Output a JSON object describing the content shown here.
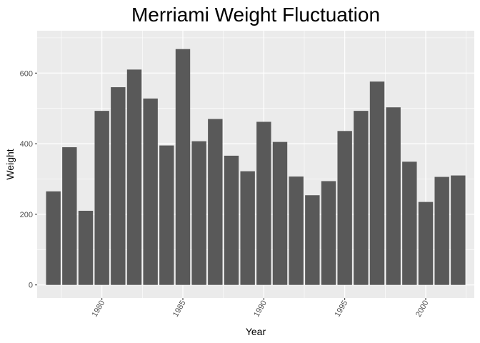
{
  "chart_data": {
    "type": "bar",
    "title": "Merriami Weight Fluctuation",
    "xlabel": "Year",
    "ylabel": "Weight",
    "x": [
      1977,
      1978,
      1979,
      1980,
      1981,
      1982,
      1983,
      1984,
      1985,
      1986,
      1987,
      1988,
      1989,
      1990,
      1991,
      1992,
      1993,
      1994,
      1995,
      1996,
      1997,
      1998,
      1999,
      2000,
      2001,
      2002
    ],
    "values": [
      265,
      390,
      210,
      493,
      560,
      610,
      528,
      395,
      668,
      407,
      470,
      366,
      322,
      462,
      405,
      307,
      254,
      294,
      436,
      493,
      576,
      503,
      349,
      235,
      306,
      310
    ],
    "xlim": [
      1976,
      2003
    ],
    "ylim": [
      -37,
      720
    ],
    "x_ticks": [
      "1980",
      "1985",
      "1990",
      "1995",
      "2000"
    ],
    "y_ticks": [
      "0",
      "200",
      "400",
      "600"
    ],
    "grid": true,
    "colors": {
      "bar": "#595959",
      "panel": "#ebebeb",
      "grid_major": "#ffffff"
    }
  }
}
